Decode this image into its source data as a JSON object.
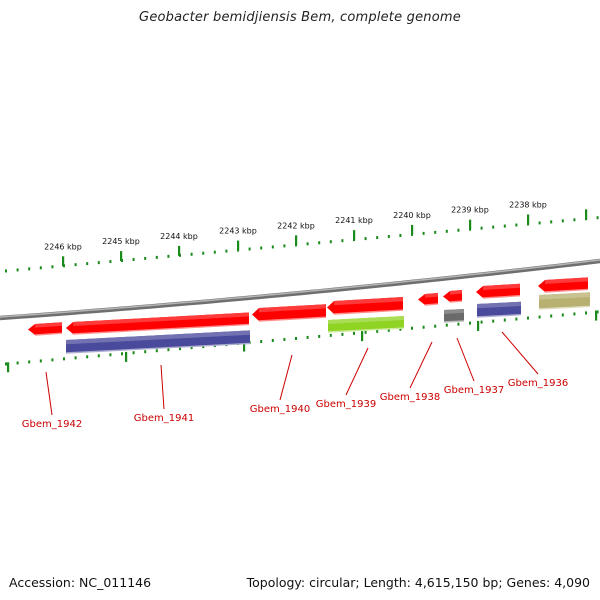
{
  "title": "Geobacter bemidjiensis Bem, complete genome",
  "footer": {
    "accession": "Accession: NC_011146",
    "stats": "Topology: circular; Length: 4,615,150 bp; Genes: 4,090"
  },
  "scale_labels": [
    "2246 kbp",
    "2245 kbp",
    "2244 kbp",
    "2243 kbp",
    "2242 kbp",
    "2241 kbp",
    "2240 kbp",
    "2239 kbp",
    "2238 kbp"
  ],
  "gene_labels": [
    "Gbem_1942",
    "Gbem_1941",
    "Gbem_1940",
    "Gbem_1939",
    "Gbem_1938",
    "Gbem_1937",
    "Gbem_1936"
  ],
  "colors": {
    "cds": "#ff0000",
    "rna_blue": "#4a4a9c",
    "green": "#8fd323",
    "grey": "#6a6a6a",
    "khaki": "#b8b070",
    "tick": "#1a8a1a",
    "backbone": "#888888",
    "label": "#cc0000"
  }
}
